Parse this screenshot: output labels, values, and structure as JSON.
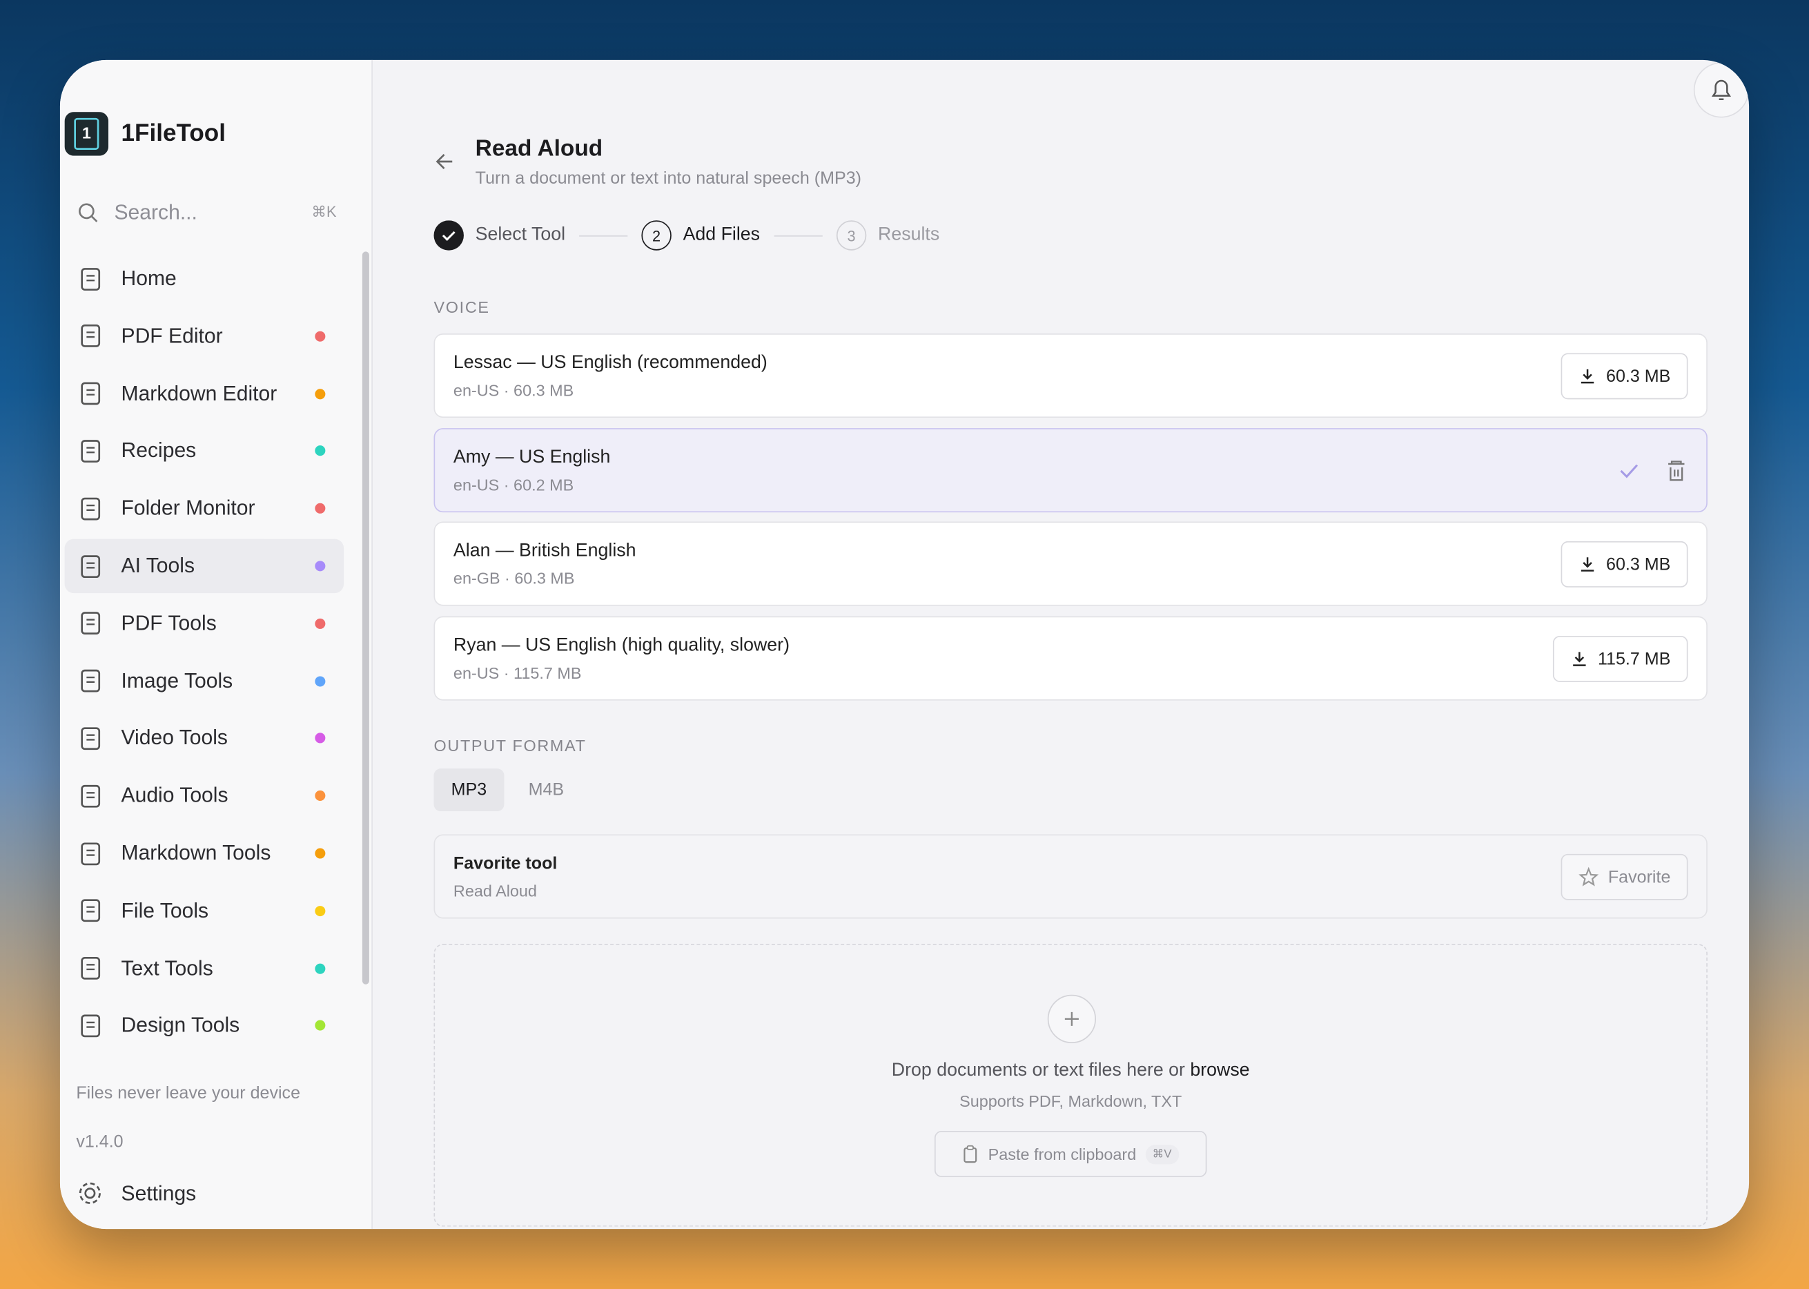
{
  "sidebar": {
    "app_name": "1FileTool",
    "search_placeholder": "Search...",
    "search_shortcut": "⌘K",
    "nav": [
      {
        "label": "Home",
        "dot": null
      },
      {
        "label": "PDF Editor",
        "dot": "#ef6b6b"
      },
      {
        "label": "Markdown Editor",
        "dot": "#f59e0b"
      },
      {
        "label": "Recipes",
        "dot": "#2dd4bf"
      },
      {
        "label": "Folder Monitor",
        "dot": "#ef6b6b"
      },
      {
        "label": "AI Tools",
        "dot": "#a78bfa",
        "active": true
      },
      {
        "label": "PDF Tools",
        "dot": "#ef6b6b"
      },
      {
        "label": "Image Tools",
        "dot": "#60a5fa"
      },
      {
        "label": "Video Tools",
        "dot": "#d65ce6"
      },
      {
        "label": "Audio Tools",
        "dot": "#fb923c"
      },
      {
        "label": "Markdown Tools",
        "dot": "#f59e0b"
      },
      {
        "label": "File Tools",
        "dot": "#facc15"
      },
      {
        "label": "Text Tools",
        "dot": "#2dd4bf"
      },
      {
        "label": "Design Tools",
        "dot": "#a3e635"
      }
    ],
    "privacy_note": "Files never leave your device",
    "version": "v1.4.0",
    "settings": "Settings"
  },
  "main": {
    "title": "Read Aloud",
    "subtitle": "Turn a document or text into natural speech (MP3)",
    "steps": [
      {
        "number": null,
        "label": "Select Tool",
        "state": "done"
      },
      {
        "number": "2",
        "label": "Add Files",
        "state": "current"
      },
      {
        "number": "3",
        "label": "Results",
        "state": "upcoming"
      }
    ],
    "voice_label": "VOICE",
    "voices": [
      {
        "name": "Lessac — US English (recommended)",
        "meta": "en-US · 60.3 MB",
        "button": "60.3 MB"
      },
      {
        "name": "Amy — US English",
        "meta": "en-US · 60.2 MB",
        "button": null,
        "selected": true
      },
      {
        "name": "Alan — British English",
        "meta": "en-GB · 60.3 MB",
        "button": "60.3 MB"
      },
      {
        "name": "Ryan — US English (high quality, slower)",
        "meta": "en-US · 115.7 MB",
        "button": "115.7 MB"
      }
    ],
    "output_label": "OUTPUT FORMAT",
    "formats": [
      {
        "label": "MP3",
        "selected": true
      },
      {
        "label": "M4B",
        "selected": false
      }
    ],
    "favorite": {
      "title": "Favorite tool",
      "subtitle": "Read Aloud",
      "button": "Favorite"
    },
    "dropzone": {
      "text": "Drop documents or text files here or ",
      "link": "browse",
      "hint": "Supports PDF, Markdown, TXT",
      "paste": "Paste from clipboard",
      "paste_shortcut": "⌘V"
    }
  }
}
